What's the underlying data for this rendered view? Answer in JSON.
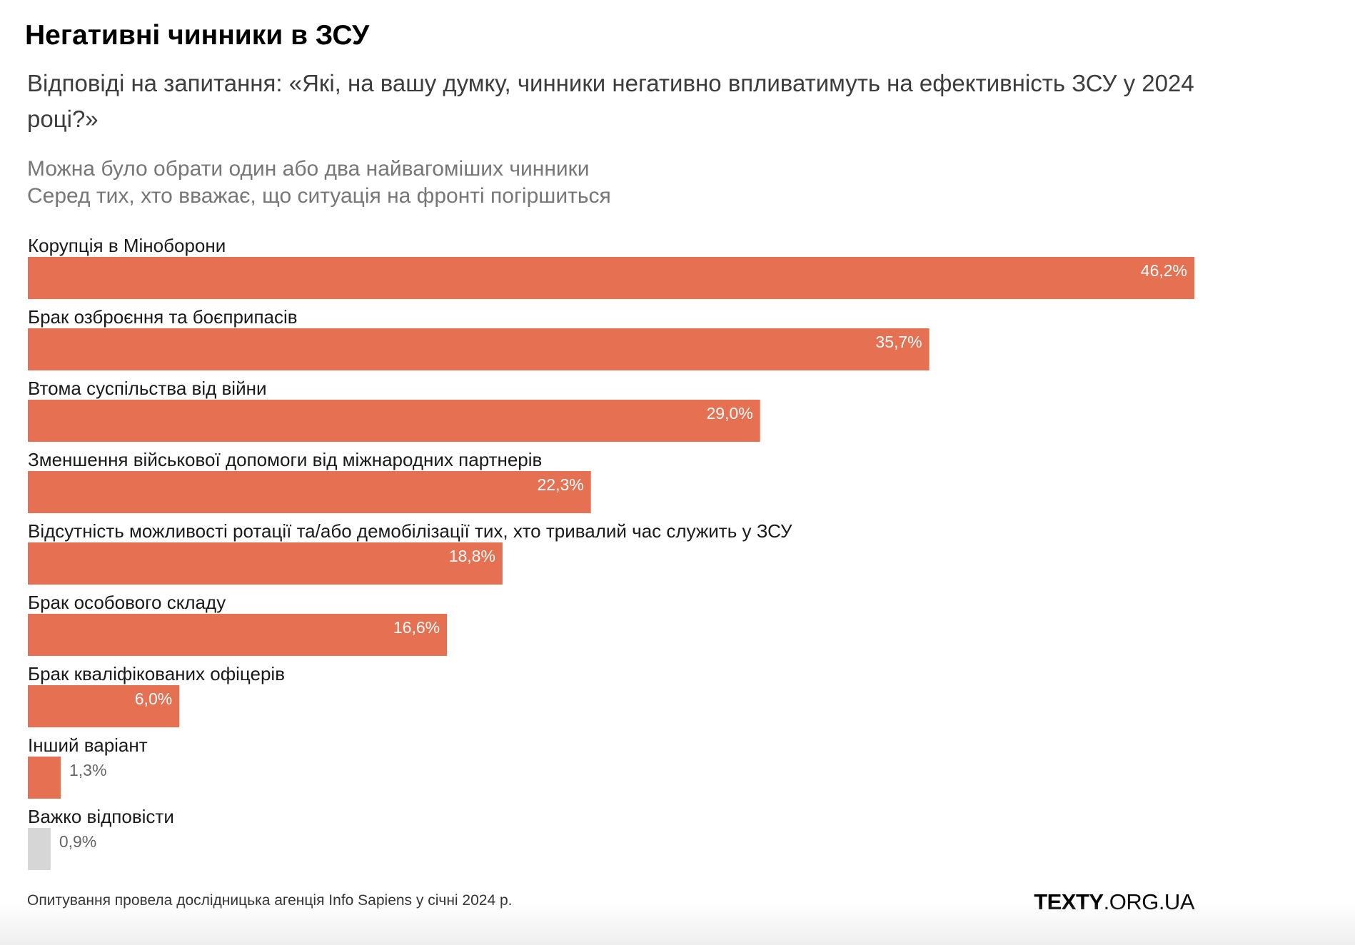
{
  "header": {
    "title": "Негативні чинники в ЗСУ",
    "subtitle": "Відповіді на запитання: «Які, на вашу думку, чинники негативно впливатимуть на ефективність ЗСУ у 2024 році?»",
    "note_1": "Можна було обрати один або два найвагоміших чинники",
    "note_2": "Серед тих, хто вважає, що ситуація на фронті погіршиться"
  },
  "footer": {
    "source": "Опитування провела дослідницька агенція Info Sapiens у січні 2024 р.",
    "logo_bold": "TEXTY",
    "logo_rest": ".ORG.UA"
  },
  "colors": {
    "bar": "#e67152",
    "bar_neutral": "#d6d6d6",
    "label_inside": "#ffffff",
    "label_outside": "#666666"
  },
  "chart_data": {
    "type": "bar",
    "orientation": "horizontal",
    "title": "Негативні чинники в ЗСУ",
    "xlim": [
      0,
      46.2
    ],
    "grid": false,
    "legend": "none",
    "categories": [
      "Корупція в Міноборони",
      "Брак озброєння та боєприпасів",
      "Втома суспільства від війни",
      "Зменшення військової допомоги від міжнародних партнерів",
      "Відсутність можливості ротації та/або демобілізації тих, хто тривалий час служить у ЗСУ",
      "Брак особового складу",
      "Брак кваліфікованих офіцерів",
      "Інший варіант",
      "Важко відповісти"
    ],
    "values": [
      46.2,
      35.7,
      29.0,
      22.3,
      18.8,
      16.6,
      6.0,
      1.3,
      0.9
    ],
    "value_labels": [
      "46,2%",
      "35,7%",
      "29,0%",
      "22,3%",
      "18,8%",
      "16,6%",
      "6,0%",
      "1,3%",
      "0,9%"
    ],
    "neutral_categories": [
      "Важко відповісти"
    ]
  }
}
